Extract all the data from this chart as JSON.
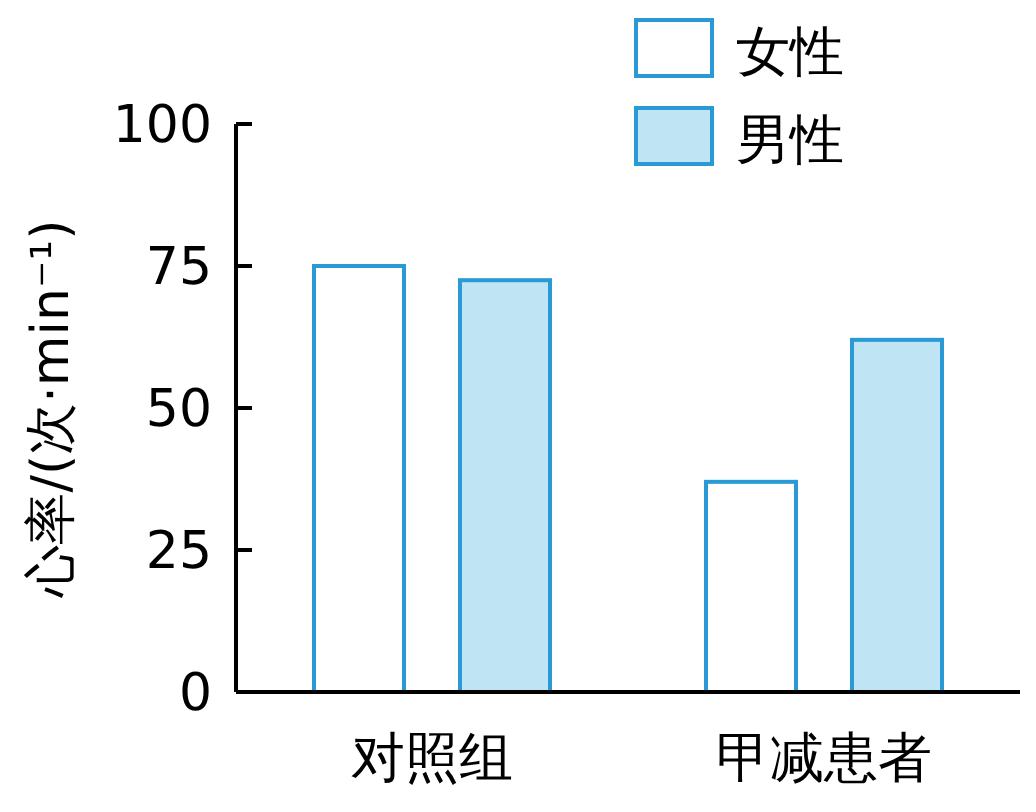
{
  "chart_data": {
    "type": "bar",
    "ylabel": "心率/(次·min⁻¹)",
    "categories": [
      "对照组",
      "甲减患者"
    ],
    "series": [
      {
        "name": "女性",
        "color": "#ffffff",
        "values": [
          75,
          37
        ]
      },
      {
        "name": "男性",
        "color": "#bfe4f4",
        "values": [
          72.5,
          62
        ]
      }
    ],
    "ylim": [
      0,
      100
    ],
    "yticks": [
      0,
      25,
      50,
      75,
      100
    ],
    "legend": "top right",
    "grid": false
  }
}
